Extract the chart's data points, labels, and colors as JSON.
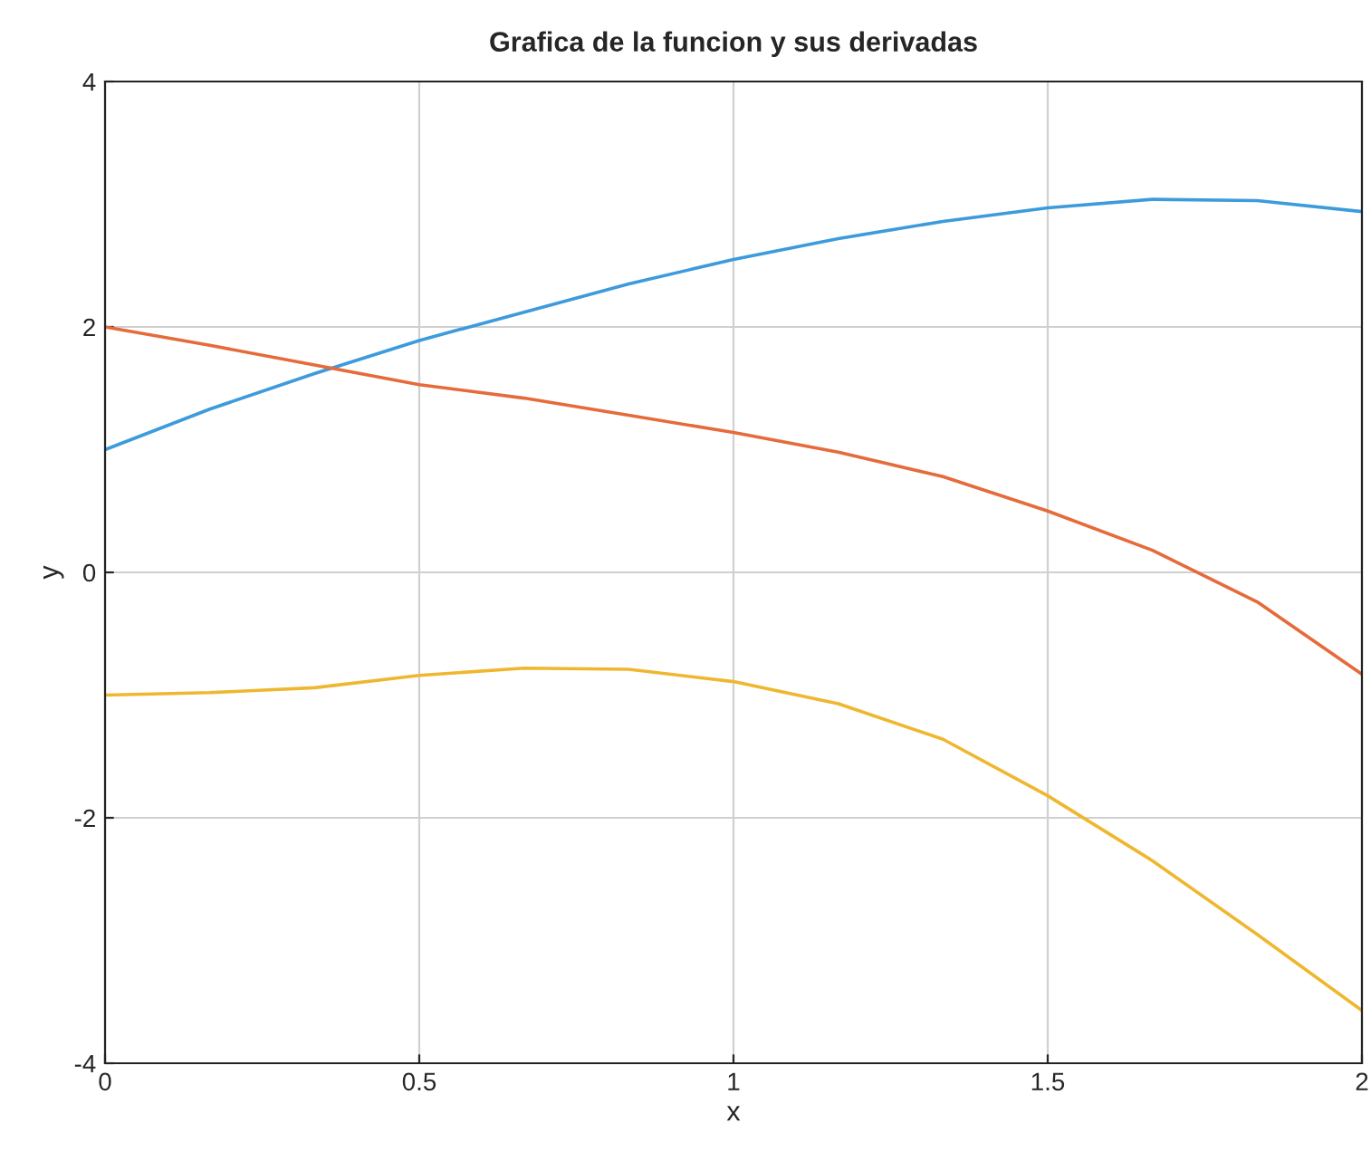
{
  "chart_data": {
    "type": "line",
    "title": "Grafica de la funcion y sus derivadas",
    "xlabel": "x",
    "ylabel": "y",
    "x": [
      0,
      0.1667,
      0.3333,
      0.5,
      0.6667,
      0.8333,
      1.0,
      1.1667,
      1.3333,
      1.5,
      1.6667,
      1.8333,
      2.0
    ],
    "series": [
      {
        "color": "#3d9bdc",
        "values": [
          1.0,
          1.33,
          1.62,
          1.89,
          2.12,
          2.35,
          2.55,
          2.72,
          2.86,
          2.97,
          3.04,
          3.03,
          2.94
        ]
      },
      {
        "color": "#e56b3b",
        "values": [
          2.0,
          1.85,
          1.69,
          1.53,
          1.42,
          1.28,
          1.14,
          0.98,
          0.78,
          0.5,
          0.18,
          -0.24,
          -0.83
        ]
      },
      {
        "color": "#efb730",
        "values": [
          -1.0,
          -0.98,
          -0.94,
          -0.84,
          -0.78,
          -0.79,
          -0.89,
          -1.07,
          -1.36,
          -1.82,
          -2.35,
          -2.95,
          -3.57
        ]
      }
    ],
    "xlim": [
      0,
      2
    ],
    "ylim": [
      -4,
      4
    ],
    "xticks": [
      0,
      0.5,
      1,
      1.5,
      2
    ],
    "yticks": [
      -4,
      -2,
      0,
      2,
      4
    ],
    "grid": true
  }
}
